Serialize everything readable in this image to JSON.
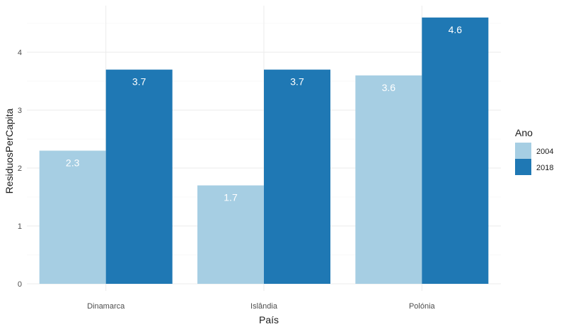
{
  "chart_data": {
    "type": "bar",
    "categories": [
      "Dinamarca",
      "Islândia",
      "Polónia"
    ],
    "series": [
      {
        "name": "2004",
        "values": [
          2.3,
          1.7,
          3.6
        ],
        "labels": [
          "2.3",
          "1.7",
          "3.6"
        ],
        "color": "#a6cee3"
      },
      {
        "name": "2018",
        "values": [
          3.7,
          3.7,
          4.6
        ],
        "labels": [
          "3.7",
          "3.7",
          "4.6"
        ],
        "color": "#1f78b4"
      }
    ],
    "xlabel": "País",
    "ylabel": "ResiduosPerCapita",
    "ylim": [
      0,
      4.6
    ],
    "yticks": [
      0,
      1,
      2,
      3,
      4
    ],
    "legend": {
      "title": "Ano",
      "placement": "right"
    },
    "grid": true,
    "colors": {
      "grid_major": "#ebebeb",
      "grid_minor": "#f5f5f5",
      "bar_label": "#ffffff"
    }
  }
}
